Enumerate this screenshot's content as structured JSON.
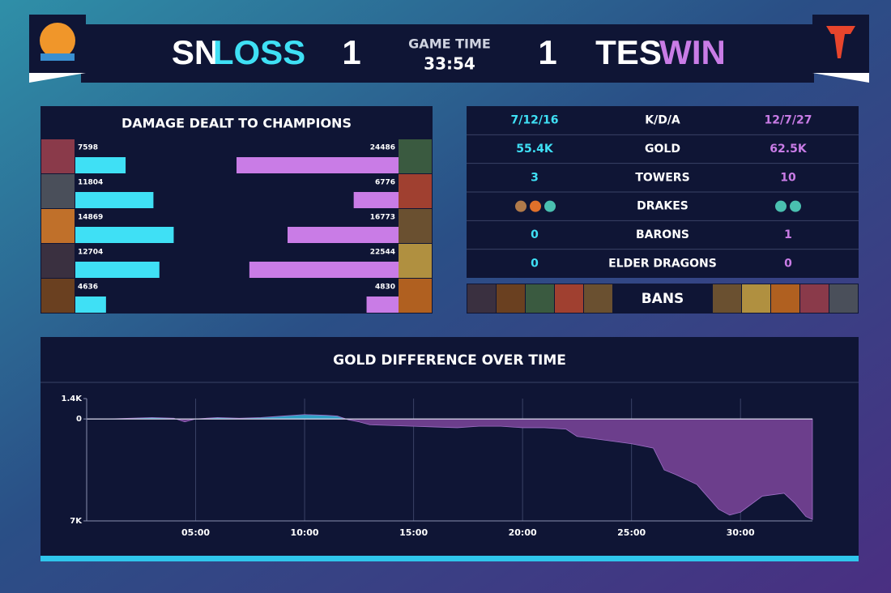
{
  "header": {
    "left_team": "SN",
    "left_result": "LOSS",
    "left_score": 1,
    "game_time_label": "GAME TIME",
    "game_time": "33:54",
    "right_score": 1,
    "right_team": "TES",
    "right_result": "WIN"
  },
  "damage": {
    "title": "DAMAGE DEALT TO CHAMPIONS",
    "left": [
      7598,
      11804,
      14869,
      12704,
      4636
    ],
    "right": [
      24486,
      6776,
      16773,
      22544,
      4830
    ]
  },
  "stats": {
    "rows": [
      {
        "left": "7/12/16",
        "label": "K/D/A",
        "right": "12/7/27"
      },
      {
        "left": "55.4K",
        "label": "GOLD",
        "right": "62.5K"
      },
      {
        "left": 3,
        "label": "TOWERS",
        "right": 10
      },
      {
        "label": "DRAKES"
      },
      {
        "left": 0,
        "label": "BARONS",
        "right": 1
      },
      {
        "left": 0,
        "label": "ELDER DRAGONS",
        "right": 0
      }
    ]
  },
  "bans": {
    "label": "BANS"
  },
  "chart_data": {
    "type": "area",
    "title": "GOLD DIFFERENCE OVER TIME",
    "x": [
      0,
      1,
      2,
      3,
      4,
      4.5,
      5,
      6,
      7,
      8,
      9,
      10,
      11,
      11.5,
      12,
      12.5,
      13,
      14,
      15,
      16,
      17,
      18,
      19,
      20,
      21,
      22,
      22.5,
      23,
      24,
      25,
      26,
      26.5,
      27,
      28,
      29,
      29.5,
      30,
      31,
      32,
      32.5,
      33,
      33.3
    ],
    "values": [
      0,
      0,
      50,
      100,
      50,
      -200,
      0,
      100,
      50,
      100,
      200,
      300,
      250,
      200,
      -50,
      -200,
      -400,
      -450,
      -500,
      -550,
      -600,
      -500,
      -500,
      -600,
      -600,
      -700,
      -1200,
      -1300,
      -1500,
      -1700,
      -2000,
      -3500,
      -3800,
      -4500,
      -6200,
      -6600,
      -6400,
      -5300,
      -5100,
      -5800,
      -6700,
      -6900
    ],
    "xlim": [
      0,
      33.3
    ],
    "ylim": [
      -7000,
      1400
    ],
    "xticks": [
      {
        "value": 5,
        "label": "05:00"
      },
      {
        "value": 10,
        "label": "10:00"
      },
      {
        "value": 15,
        "label": "15:00"
      },
      {
        "value": 20,
        "label": "20:00"
      },
      {
        "value": 25,
        "label": "25:00"
      },
      {
        "value": 30,
        "label": "30:00"
      }
    ],
    "yticks": [
      {
        "value": 1400,
        "label": "1.4K"
      },
      0,
      {
        "value": -7000,
        "label": "7K"
      }
    ],
    "colors": {
      "positive": "#2f9fc4",
      "negative": "#6c3e8c"
    },
    "grid": true
  }
}
